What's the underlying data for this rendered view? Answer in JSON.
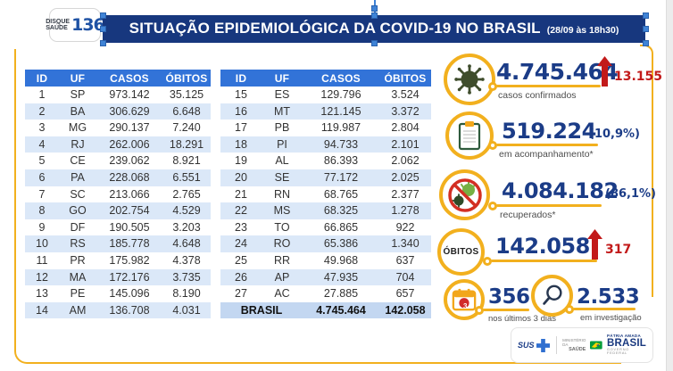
{
  "header": {
    "badge": {
      "line1": "DISQUE",
      "line2": "SAÚDE",
      "number": "136"
    },
    "title": "SITUAÇÃO EPIDEMIOLÓGICA DA COVID-19 NO BRASIL",
    "timestamp": "(28/09 às 18h30)"
  },
  "table": {
    "headers": [
      "ID",
      "UF",
      "CASOS",
      "ÓBITOS"
    ],
    "left_rows": [
      {
        "id": "1",
        "uf": "SP",
        "casos": "973.142",
        "obitos": "35.125"
      },
      {
        "id": "2",
        "uf": "BA",
        "casos": "306.629",
        "obitos": "6.648"
      },
      {
        "id": "3",
        "uf": "MG",
        "casos": "290.137",
        "obitos": "7.240"
      },
      {
        "id": "4",
        "uf": "RJ",
        "casos": "262.006",
        "obitos": "18.291"
      },
      {
        "id": "5",
        "uf": "CE",
        "casos": "239.062",
        "obitos": "8.921"
      },
      {
        "id": "6",
        "uf": "PA",
        "casos": "228.068",
        "obitos": "6.551"
      },
      {
        "id": "7",
        "uf": "SC",
        "casos": "213.066",
        "obitos": "2.765"
      },
      {
        "id": "8",
        "uf": "GO",
        "casos": "202.754",
        "obitos": "4.529"
      },
      {
        "id": "9",
        "uf": "DF",
        "casos": "190.505",
        "obitos": "3.203"
      },
      {
        "id": "10",
        "uf": "RS",
        "casos": "185.778",
        "obitos": "4.648"
      },
      {
        "id": "11",
        "uf": "PR",
        "casos": "175.982",
        "obitos": "4.378"
      },
      {
        "id": "12",
        "uf": "MA",
        "casos": "172.176",
        "obitos": "3.735"
      },
      {
        "id": "13",
        "uf": "PE",
        "casos": "145.096",
        "obitos": "8.190"
      },
      {
        "id": "14",
        "uf": "AM",
        "casos": "136.708",
        "obitos": "4.031"
      }
    ],
    "right_rows": [
      {
        "id": "15",
        "uf": "ES",
        "casos": "129.796",
        "obitos": "3.524"
      },
      {
        "id": "16",
        "uf": "MT",
        "casos": "121.145",
        "obitos": "3.372"
      },
      {
        "id": "17",
        "uf": "PB",
        "casos": "119.987",
        "obitos": "2.804"
      },
      {
        "id": "18",
        "uf": "PI",
        "casos": "94.733",
        "obitos": "2.101"
      },
      {
        "id": "19",
        "uf": "AL",
        "casos": "86.393",
        "obitos": "2.062"
      },
      {
        "id": "20",
        "uf": "SE",
        "casos": "77.172",
        "obitos": "2.025"
      },
      {
        "id": "21",
        "uf": "RN",
        "casos": "68.765",
        "obitos": "2.377"
      },
      {
        "id": "22",
        "uf": "MS",
        "casos": "68.325",
        "obitos": "1.278"
      },
      {
        "id": "23",
        "uf": "TO",
        "casos": "66.865",
        "obitos": "922"
      },
      {
        "id": "24",
        "uf": "RO",
        "casos": "65.386",
        "obitos": "1.340"
      },
      {
        "id": "25",
        "uf": "RR",
        "casos": "49.968",
        "obitos": "637"
      },
      {
        "id": "26",
        "uf": "AP",
        "casos": "47.935",
        "obitos": "704"
      },
      {
        "id": "27",
        "uf": "AC",
        "casos": "27.885",
        "obitos": "657"
      }
    ],
    "total": {
      "label": "BRASIL",
      "casos": "4.745.464",
      "obitos": "142.058"
    }
  },
  "stats": {
    "confirmed": {
      "value": "4.745.464",
      "delta": "13.155",
      "label": "casos confirmados",
      "icon": "virus-icon"
    },
    "monitoring": {
      "value": "519.224",
      "percent": "(10,9%)",
      "label": "em acompanhamento*",
      "icon": "clipboard-icon"
    },
    "recovered": {
      "value": "4.084.182",
      "percent": "(86,1%)",
      "label": "recuperados*",
      "icon": "no-virus-icon"
    },
    "deaths": {
      "circle_label": "ÓBITOS",
      "value": "142.058",
      "delta": "317"
    },
    "last3days": {
      "value": "356",
      "label": "nos últimos 3 dias",
      "badge": "3",
      "icon": "calendar-icon"
    },
    "investigation": {
      "value": "2.533",
      "label": "em investigação",
      "icon": "magnifier-icon"
    }
  },
  "footer": {
    "sus": "SUS",
    "ministry_line1": "MINISTÉRIO DA",
    "ministry_line2": "SAÚDE",
    "brand_top": "PÁTRIA AMADA",
    "brand_main": "BRASIL",
    "brand_bottom": "GOVERNO FEDERAL"
  },
  "colors": {
    "banner_navy": "#17377e",
    "number_blue": "#1b3c87",
    "table_header_blue": "#3273d8",
    "row_alt_blue": "#dbe8f8",
    "total_row_blue": "#c3d7f1",
    "accent_yellow": "#f2b01e",
    "alert_red": "#c21a1a",
    "virus_dark_green": "#3f4d2c",
    "recovered_green": "#76b043",
    "selection_handle_blue": "#3f83d6"
  }
}
